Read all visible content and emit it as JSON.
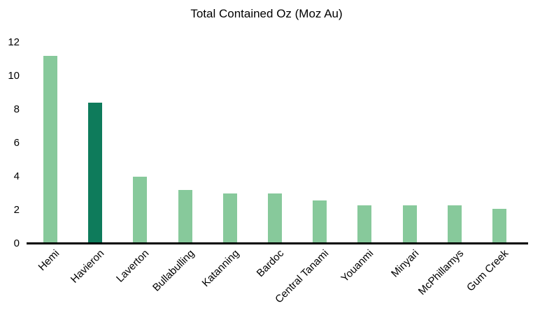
{
  "page": {
    "background_color": "#ffffff",
    "text_color": "#000000"
  },
  "chart_data": {
    "type": "bar",
    "title": "Total Contained Oz (Moz Au)",
    "categories": [
      "Hemi",
      "Havieron",
      "Laverton",
      "Bullabulling",
      "Katanning",
      "Bardoc",
      "Central Tanami",
      "Youanmi",
      "Minyari",
      "McPhillamys",
      "Gum Creek"
    ],
    "values": [
      11.2,
      8.4,
      4.0,
      3.2,
      3.0,
      3.0,
      2.6,
      2.3,
      2.3,
      2.3,
      2.1
    ],
    "xlabel": "",
    "ylabel": "",
    "ylim": [
      0,
      12
    ],
    "yticks": [
      0,
      2,
      4,
      6,
      8,
      10,
      12
    ],
    "grid": false,
    "legend_position": "none",
    "bar_color": "#87C99B",
    "highlight_color": "#0E7B5B",
    "highlight_category": "Havieron",
    "highlight_index": 1,
    "axis_line_color": "#000000",
    "x_label_rotation_deg": 45
  }
}
